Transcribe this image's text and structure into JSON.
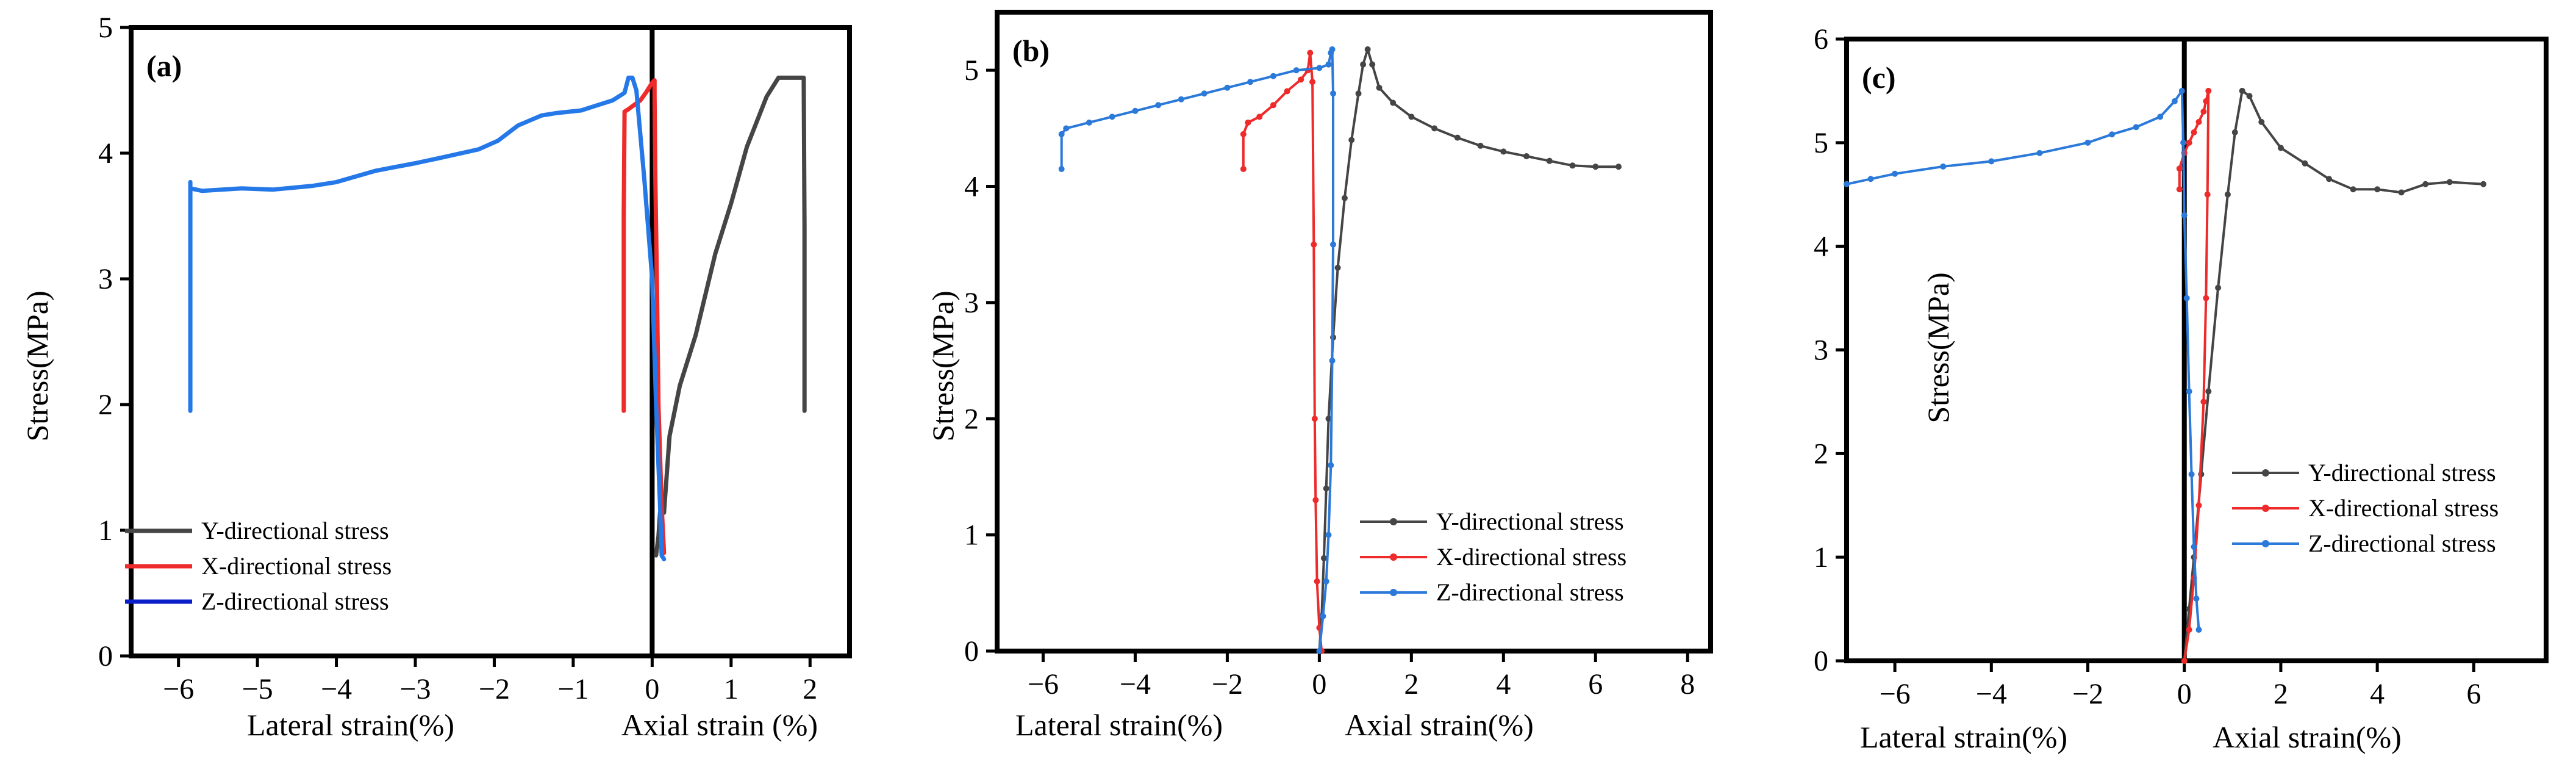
{
  "figure": {
    "description_ids": [
      "a",
      "b",
      "c"
    ]
  },
  "colors": {
    "Y": "#454545",
    "X": "#ee2a2a",
    "Z_a": "#2478e8",
    "Z_legend_a": "#0a1ec8",
    "Z_bc": "#2b79d9"
  },
  "chart_data": [
    {
      "type": "line",
      "panel": "(a)",
      "ylabel": "Stress(MPa)",
      "xlabel_left": "Lateral strain(%)",
      "xlabel_right": "Axial strain (%)",
      "xlim": [
        -6.6,
        2.5
      ],
      "ylim": [
        0,
        5
      ],
      "xticks": [
        -6,
        -5,
        -4,
        -3,
        -2,
        -1,
        0,
        1,
        2
      ],
      "xtick_labels": [
        "−6",
        "−5",
        "−4",
        "−3",
        "−2",
        "−1",
        "0",
        "1",
        "2"
      ],
      "yticks": [
        0,
        1,
        2,
        3,
        4,
        5
      ],
      "ytick_labels": [
        "0",
        "1",
        "2",
        "3",
        "4",
        "5"
      ],
      "divider_x": 0,
      "markers": false,
      "legend_position": "bottom-left",
      "series": [
        {
          "name": "Y-directional stress",
          "color_key": "Y",
          "legend_color_key": "Y",
          "x": [
            0.05,
            0.08,
            0.1,
            0.14,
            0.15,
            0.22,
            0.35,
            0.55,
            0.8,
            1.0,
            1.2,
            1.45,
            1.6,
            1.7,
            1.88,
            1.92,
            1.93,
            1.93
          ],
          "y": [
            0.8,
            0.95,
            1.14,
            1.14,
            1.14,
            1.75,
            2.15,
            2.55,
            3.2,
            3.6,
            4.05,
            4.45,
            4.6,
            4.6,
            4.6,
            4.6,
            3.4,
            1.95
          ]
        },
        {
          "name": "X-directional stress",
          "color_key": "X",
          "legend_color_key": "X",
          "x": [
            -0.36,
            -0.36,
            -0.35,
            -0.3,
            -0.15,
            -0.08,
            0.0,
            0.03,
            0.03,
            0.04,
            0.06,
            0.08,
            0.12,
            0.15
          ],
          "y": [
            1.95,
            3.5,
            4.33,
            4.35,
            4.42,
            4.48,
            4.56,
            4.58,
            4.45,
            3.8,
            3.0,
            2.0,
            1.2,
            0.82
          ]
        },
        {
          "name": "Z-directional stress",
          "color_key": "Z_a",
          "legend_color_key": "Z_legend_a",
          "x": [
            -5.85,
            -5.85,
            -5.85,
            -5.7,
            -5.2,
            -4.8,
            -4.3,
            -4.0,
            -3.5,
            -3.0,
            -2.7,
            -2.2,
            -1.95,
            -1.7,
            -1.4,
            -1.2,
            -0.9,
            -0.7,
            -0.5,
            -0.35,
            -0.3,
            -0.25,
            -0.2,
            -0.1,
            0.0,
            0.05,
            0.1,
            0.12,
            0.15
          ],
          "y": [
            1.95,
            3.77,
            3.72,
            3.7,
            3.72,
            3.71,
            3.74,
            3.77,
            3.86,
            3.92,
            3.96,
            4.03,
            4.1,
            4.22,
            4.3,
            4.32,
            4.34,
            4.38,
            4.42,
            4.48,
            4.6,
            4.6,
            4.5,
            3.8,
            3.0,
            2.0,
            1.2,
            0.8,
            0.77
          ]
        }
      ]
    },
    {
      "type": "line",
      "panel": "(b)",
      "ylabel": "Stress(MPa)",
      "xlabel_left": "Lateral strain(%)",
      "xlabel_right": "Axial strain(%)",
      "xlim": [
        -7,
        8.5
      ],
      "ylim": [
        0,
        5.5
      ],
      "xticks": [
        -6,
        -4,
        -2,
        0,
        2,
        4,
        6,
        8
      ],
      "xtick_labels": [
        "−6",
        "−4",
        "−2",
        "0",
        "2",
        "4",
        "6",
        "8"
      ],
      "yticks": [
        0,
        1,
        2,
        3,
        4,
        5
      ],
      "ytick_labels": [
        "0",
        "1",
        "2",
        "3",
        "4",
        "5"
      ],
      "divider_x": null,
      "markers": true,
      "legend_position": "bottom-right",
      "series": [
        {
          "name": "Y-directional stress",
          "color_key": "Y",
          "legend_color_key": "Y",
          "x": [
            0.0,
            0.05,
            0.1,
            0.15,
            0.2,
            0.3,
            0.4,
            0.55,
            0.7,
            0.85,
            0.95,
            1.05,
            1.15,
            1.3,
            1.6,
            2.0,
            2.5,
            3.0,
            3.5,
            4.0,
            4.5,
            5.0,
            5.5,
            6.0,
            6.5
          ],
          "y": [
            0.0,
            0.3,
            0.8,
            1.4,
            2.0,
            2.7,
            3.3,
            3.9,
            4.4,
            4.8,
            5.05,
            5.18,
            5.05,
            4.85,
            4.72,
            4.6,
            4.5,
            4.42,
            4.35,
            4.3,
            4.26,
            4.22,
            4.18,
            4.17,
            4.17
          ]
        },
        {
          "name": "X-directional stress",
          "color_key": "X",
          "legend_color_key": "X",
          "x": [
            -1.65,
            -1.65,
            -1.55,
            -1.3,
            -1.0,
            -0.7,
            -0.4,
            -0.25,
            -0.2,
            -0.15,
            -0.12,
            -0.1,
            -0.08,
            -0.05,
            0.0,
            0.05
          ],
          "y": [
            4.15,
            4.45,
            4.55,
            4.6,
            4.7,
            4.82,
            4.92,
            5.0,
            5.15,
            4.9,
            3.5,
            2.0,
            1.3,
            0.6,
            0.2,
            0.0
          ]
        },
        {
          "name": "Z-directional stress",
          "color_key": "Z_bc",
          "legend_color_key": "Z_bc",
          "x": [
            -5.6,
            -5.6,
            -5.5,
            -5.0,
            -4.5,
            -4.0,
            -3.5,
            -3.0,
            -2.5,
            -2.0,
            -1.5,
            -1.0,
            -0.5,
            0.0,
            0.2,
            0.25,
            0.28,
            0.3,
            0.3,
            0.28,
            0.25,
            0.2,
            0.15,
            0.08,
            0.0
          ],
          "y": [
            4.15,
            4.45,
            4.5,
            4.55,
            4.6,
            4.65,
            4.7,
            4.75,
            4.8,
            4.85,
            4.9,
            4.95,
            5.0,
            5.02,
            5.05,
            5.15,
            5.18,
            4.8,
            3.5,
            2.5,
            1.6,
            1.0,
            0.6,
            0.3,
            0.0
          ]
        }
      ]
    },
    {
      "type": "line",
      "panel": "(c)",
      "ylabel": "Stress(MPa)",
      "xlabel_left": "Lateral strain(%)",
      "xlabel_right": "Axial strain(%)",
      "xlim": [
        -7,
        7.5
      ],
      "ylim": [
        0,
        6
      ],
      "xticks": [
        -6,
        -4,
        -2,
        0,
        2,
        4,
        6
      ],
      "xtick_labels": [
        "−6",
        "−4",
        "−2",
        "0",
        "2",
        "4",
        "6"
      ],
      "yticks": [
        0,
        1,
        2,
        3,
        4,
        5,
        6
      ],
      "ytick_labels": [
        "0",
        "1",
        "2",
        "3",
        "4",
        "5",
        "6"
      ],
      "divider_x": 0,
      "markers": true,
      "legend_position": "bottom-right",
      "series": [
        {
          "name": "Y-directional stress",
          "color_key": "Y",
          "legend_color_key": "Y",
          "x": [
            0.0,
            0.1,
            0.2,
            0.35,
            0.5,
            0.7,
            0.9,
            1.05,
            1.2,
            1.35,
            1.6,
            2.0,
            2.5,
            3.0,
            3.5,
            4.0,
            4.5,
            5.0,
            5.5,
            6.2
          ],
          "y": [
            0.0,
            0.5,
            1.0,
            1.8,
            2.6,
            3.6,
            4.5,
            5.1,
            5.5,
            5.45,
            5.2,
            4.95,
            4.8,
            4.65,
            4.55,
            4.55,
            4.52,
            4.6,
            4.62,
            4.6
          ]
        },
        {
          "name": "X-directional stress",
          "color_key": "X",
          "legend_color_key": "X",
          "x": [
            -0.1,
            -0.1,
            0.0,
            0.1,
            0.2,
            0.3,
            0.4,
            0.45,
            0.5,
            0.48,
            0.45,
            0.4,
            0.3,
            0.2,
            0.1,
            0.0
          ],
          "y": [
            4.55,
            4.75,
            4.9,
            5.0,
            5.1,
            5.2,
            5.3,
            5.4,
            5.5,
            4.5,
            3.5,
            2.5,
            1.5,
            0.8,
            0.3,
            0.0
          ]
        },
        {
          "name": "Z-directional stress",
          "color_key": "Z_bc",
          "legend_color_key": "Z_bc",
          "x": [
            -7.0,
            -6.5,
            -6.0,
            -5.0,
            -4.0,
            -3.0,
            -2.0,
            -1.5,
            -1.0,
            -0.5,
            -0.2,
            -0.05,
            -0.02,
            0.0,
            0.05,
            0.1,
            0.15,
            0.2,
            0.25,
            0.3
          ],
          "y": [
            4.6,
            4.65,
            4.7,
            4.77,
            4.82,
            4.9,
            5.0,
            5.08,
            5.15,
            5.25,
            5.4,
            5.5,
            5.0,
            4.3,
            3.5,
            2.6,
            1.8,
            1.1,
            0.6,
            0.3
          ]
        }
      ]
    }
  ]
}
